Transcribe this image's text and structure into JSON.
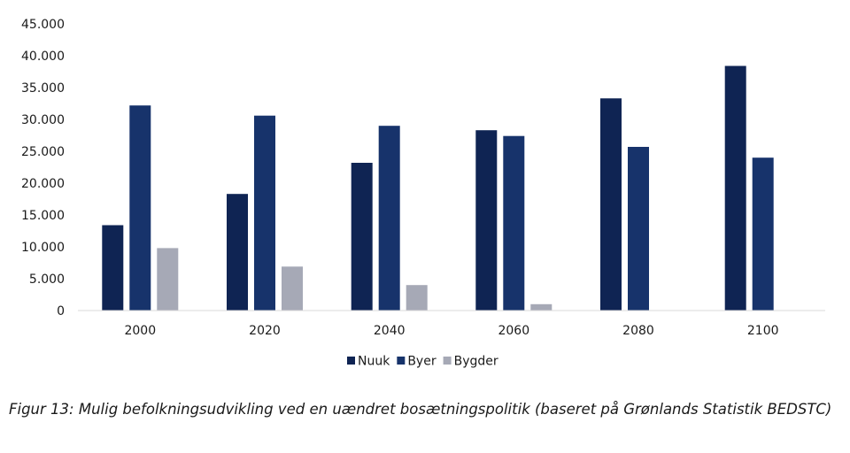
{
  "chart_data": {
    "type": "bar",
    "title": "",
    "xlabel": "",
    "ylabel": "",
    "categories": [
      "2000",
      "2020",
      "2040",
      "2060",
      "2080",
      "2100"
    ],
    "series": [
      {
        "name": "Nuuk",
        "color": "#0f2453",
        "values": [
          13400,
          18300,
          23200,
          28300,
          33300,
          38400
        ]
      },
      {
        "name": "Byer",
        "color": "#17336b",
        "values": [
          32200,
          30600,
          29000,
          27400,
          25700,
          24000
        ]
      },
      {
        "name": "Bygder",
        "color": "#a6a9b6",
        "values": [
          9800,
          6900,
          4000,
          1000,
          0,
          0
        ]
      }
    ],
    "ylim": [
      0,
      45000
    ],
    "yticks": [
      "0",
      "5.000",
      "10.000",
      "15.000",
      "20.000",
      "25.000",
      "30.000",
      "35.000",
      "40.000",
      "45.000"
    ],
    "grid": false,
    "legend": "bottom-center"
  },
  "caption": "Figur 13: Mulig befolkningsudvikling ved en uændret bosætningspolitik (baseret på Grønlands Statistik BEDSTC)"
}
